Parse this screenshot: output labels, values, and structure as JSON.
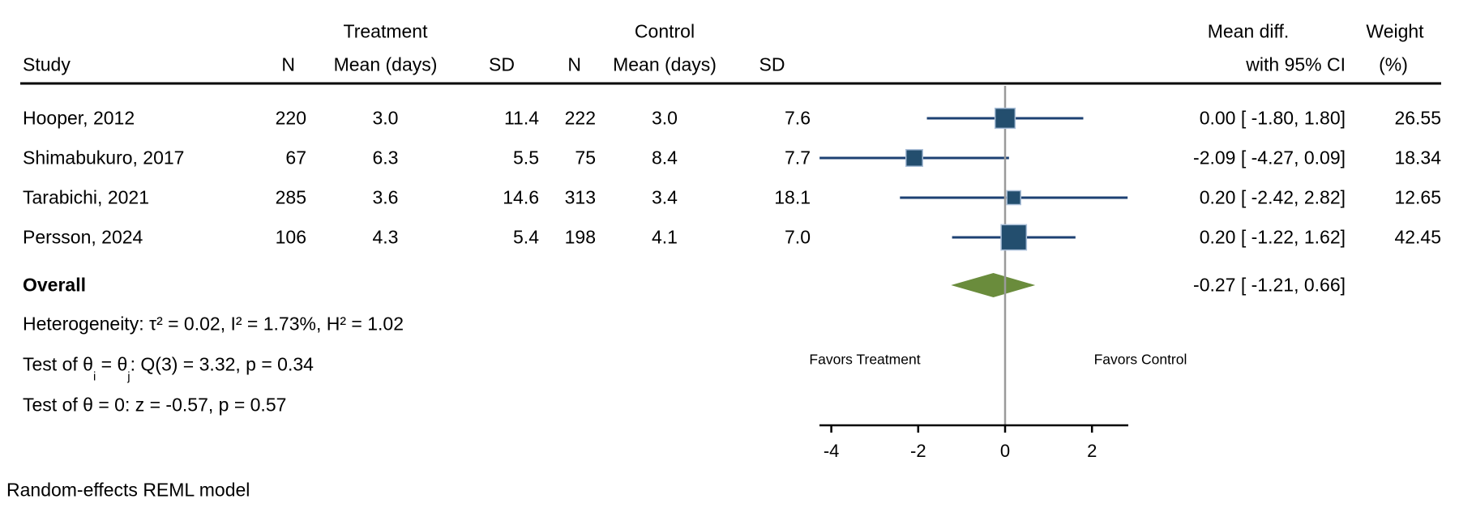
{
  "header": {
    "group_treatment": "Treatment",
    "group_control": "Control",
    "col_study": "Study",
    "col_n": "N",
    "col_mean": "Mean (days)",
    "col_sd": "SD",
    "col_effect_line1": "Mean diff.",
    "col_effect_line2": "with 95% CI",
    "col_weight_line1": "Weight",
    "col_weight_line2": "(%)"
  },
  "chart_data": {
    "type": "forest",
    "effect_measure": "Mean diff. with 95% CI",
    "x_axis": {
      "ticks": [
        -4,
        -2,
        0,
        2
      ],
      "tick_labels": [
        "-4",
        "-2",
        "0",
        "2"
      ],
      "range": [
        -4.3,
        2.85
      ],
      "zero_reference": 0
    },
    "favors_left": "Favors Treatment",
    "favors_right": "Favors Control",
    "studies": [
      {
        "label": "Hooper, 2012",
        "t_n": "220",
        "t_mean": "3.0",
        "t_sd": "11.4",
        "c_n": "222",
        "c_mean": "3.0",
        "c_sd": "7.6",
        "est": 0.0,
        "lo": -1.8,
        "hi": 1.8,
        "weight": 26.55,
        "ci_text": "0.00 [ -1.80,  1.80]",
        "weight_text": "26.55"
      },
      {
        "label": "Shimabukuro, 2017",
        "t_n": "67",
        "t_mean": "6.3",
        "t_sd": "5.5",
        "c_n": "75",
        "c_mean": "8.4",
        "c_sd": "7.7",
        "est": -2.09,
        "lo": -4.27,
        "hi": 0.09,
        "weight": 18.34,
        "ci_text": "-2.09 [ -4.27,  0.09]",
        "weight_text": "18.34"
      },
      {
        "label": "Tarabichi, 2021",
        "t_n": "285",
        "t_mean": "3.6",
        "t_sd": "14.6",
        "c_n": "313",
        "c_mean": "3.4",
        "c_sd": "18.1",
        "est": 0.2,
        "lo": -2.42,
        "hi": 2.82,
        "weight": 12.65,
        "ci_text": "0.20 [ -2.42,  2.82]",
        "weight_text": "12.65"
      },
      {
        "label": "Persson, 2024",
        "t_n": "106",
        "t_mean": "4.3",
        "t_sd": "5.4",
        "c_n": "198",
        "c_mean": "4.1",
        "c_sd": "7.0",
        "est": 0.2,
        "lo": -1.22,
        "hi": 1.62,
        "weight": 42.45,
        "ci_text": "0.20 [ -1.22,  1.62]",
        "weight_text": "42.45"
      }
    ],
    "overall": {
      "label": "Overall",
      "est": -0.27,
      "lo": -1.21,
      "hi": 0.66,
      "ci_text": "-0.27 [ -1.21,  0.66]"
    },
    "colors": {
      "marker": "#234e6e",
      "marker_edge": "#aabfd8",
      "ci_line": "#1d4173",
      "diamond": "#6a8c3c",
      "zero_line": "#9a9a9a",
      "axis": "#000000"
    }
  },
  "stats": {
    "heterogeneity": "Heterogeneity: τ² = 0.02, I² = 1.73%, H² = 1.02",
    "test_between_prefix": "Test of θ",
    "test_between_sub_i": "i",
    "test_between_mid": " = θ",
    "test_between_sub_j": "j",
    "test_between_suffix": ": Q(3) = 3.32, p = 0.34",
    "test_zero": "Test of θ = 0: z = -0.57, p = 0.57"
  },
  "footer": {
    "model_note": "Random-effects REML model"
  }
}
